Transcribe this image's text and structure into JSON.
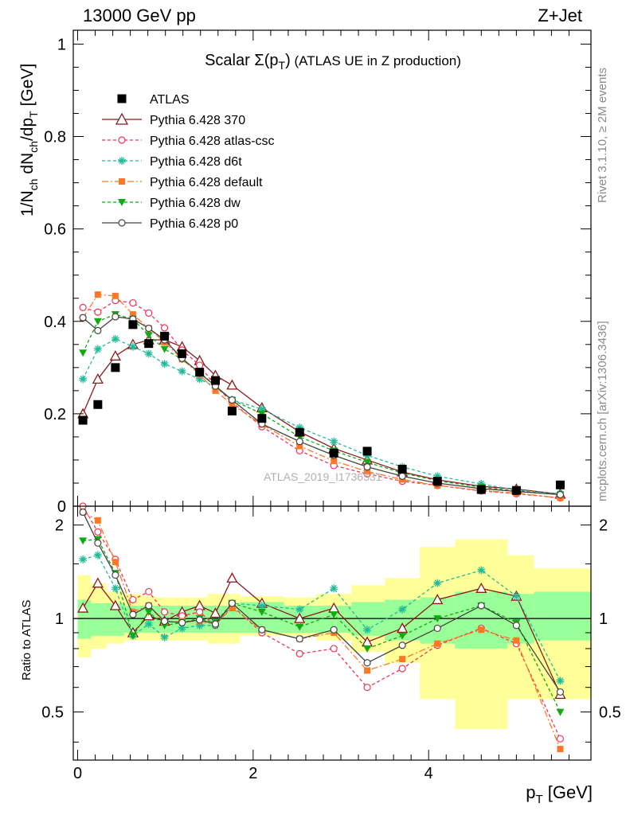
{
  "header": {
    "left": "13000 GeV pp",
    "right": "Z+Jet"
  },
  "side": {
    "top": "Rivet 3.1.10, ≥ 2M events",
    "bottom": "mcplots.cern.ch [arXiv:1306.3436]"
  },
  "watermark": "ATLAS_2019_I1736531",
  "colors": {
    "band_stat": "#99ff99",
    "band_total": "#ffff99",
    "data": "#000000"
  },
  "chart_data": {
    "type": "line",
    "title": "Scalar Σ(pT) (ATLAS UE in Z production)",
    "title_parts": {
      "main": "Scalar Σ(p",
      "sub": "T",
      "close": ")",
      "rest": " (ATLAS UE in Z production)"
    },
    "xlabel": "pT [GeV]",
    "xlabel_parts": {
      "main": "p",
      "sub": "T",
      "rest": " [GeV]"
    },
    "ylabel": "1/Nch dNch/dpT [GeV]",
    "ylabel_parts": [
      "1/N",
      "ch",
      " dN",
      "ch",
      "/dp",
      "T",
      " [GeV]"
    ],
    "ratio_ylabel": "Ratio to ATLAS",
    "xlim": [
      -0.05,
      5.85
    ],
    "ylim": [
      0,
      1.03
    ],
    "ratio_ylim": [
      0.35,
      2.3
    ],
    "ratio_log": true,
    "x_ticks": [
      "0",
      "2",
      "4"
    ],
    "y_ticks": [
      "0",
      "0.2",
      "0.4",
      "0.6",
      "0.8",
      "1"
    ],
    "ratio_ticks": [
      "0.5",
      "1",
      "2"
    ],
    "x": [
      0.06,
      0.23,
      0.43,
      0.63,
      0.81,
      0.99,
      1.19,
      1.39,
      1.57,
      1.76,
      2.1,
      2.53,
      2.92,
      3.3,
      3.7,
      4.1,
      4.6,
      5.0,
      5.5
    ],
    "bin_edges": [
      0,
      0.15,
      0.33,
      0.53,
      0.73,
      0.9,
      1.1,
      1.3,
      1.48,
      1.67,
      1.85,
      2.35,
      2.72,
      3.12,
      3.5,
      3.9,
      4.3,
      4.9,
      5.2,
      5.85
    ],
    "data": {
      "name": "ATLAS",
      "values": [
        0.186,
        0.22,
        0.3,
        0.393,
        0.352,
        0.368,
        0.33,
        0.29,
        0.272,
        0.206,
        0.19,
        0.16,
        0.115,
        0.119,
        0.08,
        0.054,
        0.036,
        0.034,
        0.046
      ]
    },
    "bands": {
      "stat": [
        [
          0.86,
          1.15
        ],
        [
          0.88,
          1.12
        ],
        [
          0.88,
          1.12
        ],
        [
          0.9,
          1.1
        ],
        [
          0.9,
          1.1
        ],
        [
          0.9,
          1.1
        ],
        [
          0.9,
          1.1
        ],
        [
          0.9,
          1.1
        ],
        [
          0.9,
          1.1
        ],
        [
          0.9,
          1.1
        ],
        [
          0.9,
          1.13
        ],
        [
          0.9,
          1.1
        ],
        [
          0.9,
          1.1
        ],
        [
          0.88,
          1.13
        ],
        [
          0.85,
          1.15
        ],
        [
          0.83,
          1.17
        ],
        [
          0.8,
          1.22
        ],
        [
          0.83,
          1.2
        ],
        [
          0.85,
          1.22
        ]
      ],
      "total": [
        [
          0.75,
          1.38
        ],
        [
          0.8,
          1.3
        ],
        [
          0.83,
          1.22
        ],
        [
          0.85,
          1.2
        ],
        [
          0.85,
          1.18
        ],
        [
          0.85,
          1.17
        ],
        [
          0.85,
          1.17
        ],
        [
          0.85,
          1.17
        ],
        [
          0.83,
          1.2
        ],
        [
          0.83,
          1.2
        ],
        [
          0.88,
          1.18
        ],
        [
          0.88,
          1.17
        ],
        [
          0.85,
          1.2
        ],
        [
          0.78,
          1.28
        ],
        [
          0.72,
          1.35
        ],
        [
          0.55,
          1.7
        ],
        [
          0.44,
          1.8
        ],
        [
          0.55,
          1.6
        ],
        [
          0.55,
          1.45
        ]
      ]
    },
    "series": [
      {
        "name": "Pythia 6.428 370",
        "color": "#8b1a1a",
        "dash": "",
        "marker": "triangle-open",
        "values": [
          0.2,
          0.275,
          0.325,
          0.35,
          0.36,
          0.36,
          0.345,
          0.315,
          0.283,
          0.262,
          0.213,
          0.161,
          0.125,
          0.1,
          0.074,
          0.057,
          0.043,
          0.037,
          0.026
        ],
        "ratio": [
          1.08,
          1.3,
          1.1,
          0.9,
          1.02,
          0.98,
          1.05,
          1.1,
          1.04,
          1.35,
          1.12,
          1.0,
          1.08,
          0.84,
          0.93,
          1.15,
          1.25,
          1.18,
          0.57
        ]
      },
      {
        "name": "Pythia 6.428 atlas-csc",
        "color": "#ee3355",
        "dash": "4,3",
        "marker": "circle-open",
        "values": [
          0.43,
          0.42,
          0.445,
          0.44,
          0.418,
          0.386,
          0.338,
          0.305,
          0.26,
          0.225,
          0.172,
          0.12,
          0.088,
          0.07,
          0.054,
          0.045,
          0.033,
          0.027,
          0.018
        ],
        "ratio": [
          2.3,
          1.9,
          1.55,
          1.15,
          1.22,
          1.05,
          1.02,
          1.05,
          0.95,
          1.1,
          0.9,
          0.77,
          0.8,
          0.6,
          0.69,
          0.82,
          0.93,
          0.83,
          0.41
        ]
      },
      {
        "name": "Pythia 6.428 d6t",
        "color": "#22bb99",
        "dash": "4,3",
        "marker": "star",
        "values": [
          0.275,
          0.34,
          0.362,
          0.345,
          0.33,
          0.308,
          0.292,
          0.275,
          0.258,
          0.23,
          0.21,
          0.17,
          0.14,
          0.11,
          0.085,
          0.065,
          0.048,
          0.035,
          0.027
        ],
        "ratio": [
          1.55,
          1.6,
          1.25,
          0.88,
          0.96,
          0.87,
          0.93,
          0.95,
          0.95,
          1.12,
          1.1,
          1.07,
          1.25,
          0.92,
          1.07,
          1.3,
          1.43,
          1.18,
          0.63
        ]
      },
      {
        "name": "Pythia 6.428 default",
        "color": "#ff7722",
        "dash": "8,3,2,3",
        "marker": "square",
        "values": [
          0.407,
          0.458,
          0.455,
          0.415,
          0.385,
          0.355,
          0.318,
          0.285,
          0.25,
          0.22,
          0.177,
          0.13,
          0.098,
          0.075,
          0.058,
          0.045,
          0.034,
          0.028,
          0.018
        ],
        "ratio": [
          2.2,
          2.07,
          1.52,
          1.05,
          1.1,
          0.97,
          0.98,
          0.98,
          0.96,
          1.08,
          0.92,
          0.86,
          0.9,
          0.68,
          0.74,
          0.83,
          0.92,
          0.85,
          0.38
        ]
      },
      {
        "name": "Pythia 6.428 dw",
        "color": "#11aa11",
        "dash": "4,3",
        "marker": "triangle-down",
        "values": [
          0.332,
          0.4,
          0.415,
          0.405,
          0.37,
          0.34,
          0.318,
          0.29,
          0.26,
          0.23,
          0.2,
          0.15,
          0.12,
          0.095,
          0.072,
          0.055,
          0.041,
          0.033,
          0.025
        ],
        "ratio": [
          1.78,
          1.8,
          1.4,
          0.88,
          1.05,
          0.95,
          0.97,
          1.0,
          0.97,
          1.12,
          1.05,
          0.94,
          1.03,
          0.8,
          0.88,
          1.0,
          1.1,
          0.97,
          0.5
        ]
      },
      {
        "name": "Pythia 6.428 p0",
        "color": "#444444",
        "dash": "",
        "marker": "circle-open",
        "values": [
          0.408,
          0.38,
          0.41,
          0.405,
          0.385,
          0.36,
          0.32,
          0.288,
          0.26,
          0.23,
          0.178,
          0.14,
          0.11,
          0.085,
          0.065,
          0.05,
          0.038,
          0.032,
          0.025
        ],
        "ratio": [
          2.2,
          1.75,
          1.38,
          1.03,
          1.1,
          0.98,
          0.97,
          0.99,
          0.96,
          1.12,
          0.92,
          0.86,
          0.92,
          0.72,
          0.82,
          0.93,
          1.1,
          0.95,
          0.58
        ]
      }
    ]
  }
}
